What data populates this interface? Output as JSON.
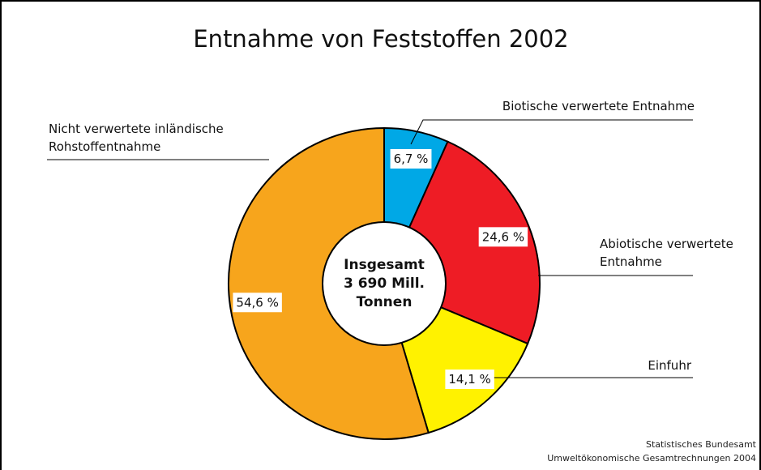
{
  "chart_data": {
    "type": "pie",
    "donut": true,
    "title": "Entnahme von Feststoffen 2002",
    "categories": [
      "Biotische verwertete Entnahme",
      "Abiotische verwertete Entnahme",
      "Einfuhr",
      "Nicht verwertete inländische Rohstoffentnahme"
    ],
    "values": [
      6.7,
      24.6,
      14.1,
      54.6
    ],
    "value_labels": [
      "6,7 %",
      "24,6 %",
      "14,1 %",
      "54,6 %"
    ],
    "colors": [
      "#00a8e6",
      "#ee1c25",
      "#fff200",
      "#f7a51c"
    ],
    "center_label": [
      "Insgesamt",
      "3 690 Mill.",
      "Tonnen"
    ],
    "source": [
      "Statistisches Bundesamt",
      "Umweltökonomische Gesamtrechnungen 2004"
    ]
  }
}
